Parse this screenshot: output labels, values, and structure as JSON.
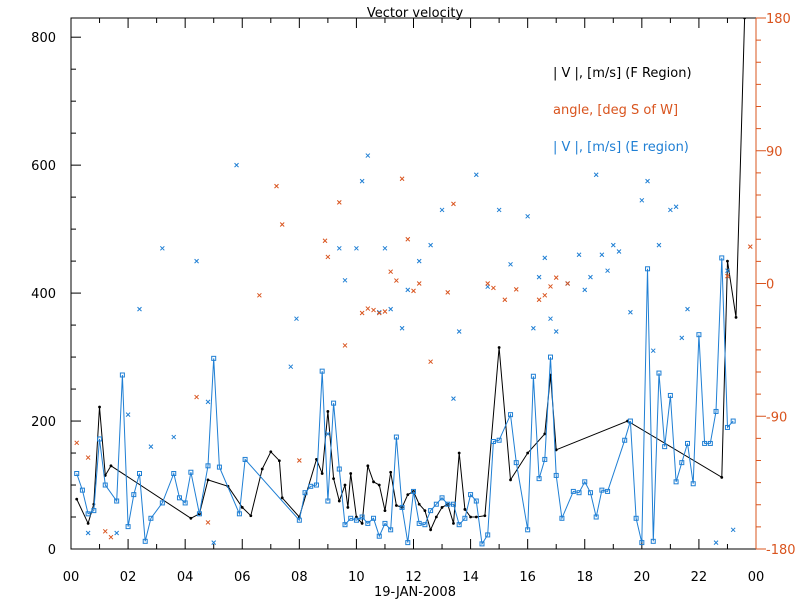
{
  "chart_data": {
    "type": "line",
    "title": "Vector velocity",
    "xlabel": "19-JAN-2008",
    "x_ticks": [
      "00",
      "02",
      "04",
      "06",
      "08",
      "10",
      "12",
      "14",
      "16",
      "18",
      "20",
      "22",
      "00"
    ],
    "xlim": [
      0,
      24
    ],
    "y_left": {
      "label": "",
      "lim": [
        0,
        830
      ],
      "ticks": [
        0,
        200,
        400,
        600,
        800
      ]
    },
    "y_right": {
      "label": "",
      "lim": [
        -180,
        180
      ],
      "ticks": [
        -180,
        -90,
        0,
        90,
        180
      ],
      "color": "#d9541e"
    },
    "legend": [
      {
        "text": "| V |, [m/s] (F Region)",
        "color": "#000000"
      },
      {
        "text": "angle, [deg S of W]",
        "color": "#d9541e"
      },
      {
        "text": "| V |, [m/s] (E region)",
        "color": "#1f7fd4"
      }
    ],
    "series": [
      {
        "name": "|V| F Region",
        "color": "#000000",
        "axis": "left",
        "marker": "dot",
        "points": [
          [
            0.2,
            78
          ],
          [
            0.6,
            40
          ],
          [
            0.8,
            70
          ],
          [
            1.0,
            222
          ],
          [
            1.2,
            115
          ],
          [
            1.4,
            130
          ],
          [
            4.2,
            48
          ],
          [
            4.5,
            55
          ],
          [
            4.8,
            108
          ],
          [
            5.5,
            98
          ],
          [
            6.0,
            65
          ],
          [
            6.3,
            52
          ],
          [
            6.7,
            125
          ],
          [
            7.0,
            152
          ],
          [
            7.3,
            138
          ],
          [
            7.4,
            80
          ],
          [
            8.0,
            50
          ],
          [
            8.6,
            140
          ],
          [
            8.8,
            118
          ],
          [
            9.0,
            215
          ],
          [
            9.2,
            110
          ],
          [
            9.4,
            75
          ],
          [
            9.6,
            100
          ],
          [
            9.7,
            65
          ],
          [
            9.8,
            118
          ],
          [
            10.0,
            50
          ],
          [
            10.2,
            40
          ],
          [
            10.4,
            130
          ],
          [
            10.6,
            105
          ],
          [
            10.8,
            100
          ],
          [
            11.0,
            60
          ],
          [
            11.2,
            120
          ],
          [
            11.4,
            68
          ],
          [
            11.6,
            65
          ],
          [
            11.8,
            85
          ],
          [
            12.0,
            90
          ],
          [
            12.2,
            70
          ],
          [
            12.4,
            60
          ],
          [
            12.6,
            30
          ],
          [
            12.8,
            50
          ],
          [
            13.0,
            65
          ],
          [
            13.2,
            70
          ],
          [
            13.4,
            40
          ],
          [
            13.6,
            150
          ],
          [
            13.8,
            62
          ],
          [
            14.0,
            50
          ],
          [
            14.2,
            50
          ],
          [
            14.5,
            52
          ],
          [
            15.0,
            315
          ],
          [
            15.4,
            108
          ],
          [
            16.0,
            150
          ],
          [
            16.6,
            180
          ],
          [
            16.8,
            272
          ],
          [
            17.0,
            155
          ],
          [
            19.5,
            200
          ],
          [
            22.8,
            112
          ],
          [
            23.0,
            450
          ],
          [
            23.3,
            362
          ],
          [
            23.6,
            830
          ]
        ]
      },
      {
        "name": "|V| E region",
        "color": "#1f7fd4",
        "axis": "left",
        "marker": "square",
        "points": [
          [
            0.2,
            118
          ],
          [
            0.4,
            92
          ],
          [
            0.6,
            55
          ],
          [
            0.8,
            60
          ],
          [
            1.0,
            172
          ],
          [
            1.2,
            100
          ],
          [
            1.6,
            75
          ],
          [
            1.8,
            272
          ],
          [
            2.0,
            35
          ],
          [
            2.2,
            85
          ],
          [
            2.4,
            118
          ],
          [
            2.6,
            12
          ],
          [
            2.8,
            48
          ],
          [
            3.2,
            72
          ],
          [
            3.6,
            118
          ],
          [
            3.8,
            80
          ],
          [
            4.0,
            72
          ],
          [
            4.2,
            120
          ],
          [
            4.5,
            55
          ],
          [
            4.8,
            130
          ],
          [
            5.0,
            298
          ],
          [
            5.2,
            128
          ],
          [
            5.9,
            55
          ],
          [
            6.1,
            140
          ],
          [
            8.0,
            45
          ],
          [
            8.2,
            88
          ],
          [
            8.4,
            98
          ],
          [
            8.6,
            100
          ],
          [
            8.8,
            278
          ],
          [
            9.0,
            75
          ],
          [
            9.2,
            228
          ],
          [
            9.4,
            125
          ],
          [
            9.6,
            38
          ],
          [
            9.8,
            48
          ],
          [
            10.0,
            45
          ],
          [
            10.2,
            50
          ],
          [
            10.4,
            40
          ],
          [
            10.6,
            48
          ],
          [
            10.8,
            20
          ],
          [
            11.0,
            40
          ],
          [
            11.2,
            30
          ],
          [
            11.4,
            175
          ],
          [
            11.6,
            65
          ],
          [
            11.8,
            10
          ],
          [
            12.0,
            90
          ],
          [
            12.2,
            40
          ],
          [
            12.4,
            38
          ],
          [
            12.6,
            60
          ],
          [
            12.8,
            70
          ],
          [
            13.0,
            80
          ],
          [
            13.2,
            70
          ],
          [
            13.4,
            70
          ],
          [
            13.6,
            38
          ],
          [
            13.8,
            48
          ],
          [
            14.0,
            85
          ],
          [
            14.2,
            75
          ],
          [
            14.4,
            8
          ],
          [
            14.6,
            22
          ],
          [
            14.8,
            168
          ],
          [
            15.0,
            170
          ],
          [
            15.4,
            210
          ],
          [
            15.6,
            135
          ],
          [
            16.0,
            30
          ],
          [
            16.2,
            270
          ],
          [
            16.4,
            110
          ],
          [
            16.6,
            140
          ],
          [
            16.8,
            300
          ],
          [
            17.0,
            115
          ],
          [
            17.2,
            48
          ],
          [
            17.6,
            90
          ],
          [
            17.8,
            88
          ],
          [
            18.0,
            105
          ],
          [
            18.2,
            88
          ],
          [
            18.4,
            50
          ],
          [
            18.6,
            92
          ],
          [
            18.8,
            90
          ],
          [
            19.4,
            170
          ],
          [
            19.6,
            200
          ],
          [
            19.8,
            48
          ],
          [
            20.0,
            10
          ],
          [
            20.2,
            438
          ],
          [
            20.4,
            12
          ],
          [
            20.6,
            275
          ],
          [
            20.8,
            160
          ],
          [
            21.0,
            240
          ],
          [
            21.2,
            105
          ],
          [
            21.4,
            135
          ],
          [
            21.6,
            165
          ],
          [
            21.8,
            102
          ],
          [
            22.0,
            335
          ],
          [
            22.2,
            165
          ],
          [
            22.4,
            165
          ],
          [
            22.6,
            215
          ],
          [
            22.8,
            455
          ],
          [
            23.0,
            190
          ],
          [
            23.2,
            200
          ]
        ]
      },
      {
        "name": "|V| E region (unconnected)",
        "color": "#1f7fd4",
        "axis": "left",
        "marker": "x",
        "points": [
          [
            0.6,
            25
          ],
          [
            1.6,
            25
          ],
          [
            2.0,
            210
          ],
          [
            2.4,
            375
          ],
          [
            2.8,
            160
          ],
          [
            3.2,
            470
          ],
          [
            3.6,
            175
          ],
          [
            4.4,
            450
          ],
          [
            4.8,
            230
          ],
          [
            5.0,
            10
          ],
          [
            5.8,
            600
          ],
          [
            7.9,
            360
          ],
          [
            7.7,
            285
          ],
          [
            9.0,
            180
          ],
          [
            9.4,
            470
          ],
          [
            9.6,
            420
          ],
          [
            10.0,
            470
          ],
          [
            10.2,
            575
          ],
          [
            10.4,
            615
          ],
          [
            10.8,
            370
          ],
          [
            11.0,
            470
          ],
          [
            11.2,
            375
          ],
          [
            11.6,
            345
          ],
          [
            11.8,
            405
          ],
          [
            12.2,
            450
          ],
          [
            12.6,
            475
          ],
          [
            13.0,
            530
          ],
          [
            13.4,
            235
          ],
          [
            13.6,
            340
          ],
          [
            14.2,
            585
          ],
          [
            14.6,
            410
          ],
          [
            15.0,
            530
          ],
          [
            15.4,
            445
          ],
          [
            16.0,
            520
          ],
          [
            16.2,
            345
          ],
          [
            16.4,
            425
          ],
          [
            16.6,
            455
          ],
          [
            16.8,
            360
          ],
          [
            17.0,
            340
          ],
          [
            17.4,
            415
          ],
          [
            17.8,
            460
          ],
          [
            18.0,
            405
          ],
          [
            18.2,
            425
          ],
          [
            18.4,
            585
          ],
          [
            18.6,
            460
          ],
          [
            18.8,
            435
          ],
          [
            19.0,
            475
          ],
          [
            19.2,
            465
          ],
          [
            19.6,
            370
          ],
          [
            20.0,
            545
          ],
          [
            20.2,
            575
          ],
          [
            20.4,
            310
          ],
          [
            20.6,
            475
          ],
          [
            21.0,
            530
          ],
          [
            21.2,
            535
          ],
          [
            21.4,
            330
          ],
          [
            21.6,
            375
          ],
          [
            22.6,
            10
          ],
          [
            23.0,
            435
          ],
          [
            23.2,
            30
          ]
        ]
      },
      {
        "name": "angle",
        "color": "#d9541e",
        "axis": "right",
        "marker": "x",
        "points": [
          [
            0.2,
            -108
          ],
          [
            0.6,
            -118
          ],
          [
            1.2,
            -168
          ],
          [
            1.4,
            -172
          ],
          [
            4.4,
            -77
          ],
          [
            4.8,
            -162
          ],
          [
            6.6,
            -8
          ],
          [
            7.2,
            66
          ],
          [
            7.4,
            40
          ],
          [
            8.0,
            -120
          ],
          [
            8.9,
            29
          ],
          [
            9.0,
            18
          ],
          [
            9.4,
            55
          ],
          [
            9.6,
            -42
          ],
          [
            10.2,
            -20
          ],
          [
            10.4,
            -17
          ],
          [
            10.6,
            -18
          ],
          [
            10.8,
            -20
          ],
          [
            11.0,
            -19
          ],
          [
            11.2,
            8
          ],
          [
            11.4,
            2
          ],
          [
            11.6,
            71
          ],
          [
            11.8,
            30
          ],
          [
            12.0,
            -5
          ],
          [
            12.2,
            0
          ],
          [
            12.6,
            -53
          ],
          [
            13.2,
            -6
          ],
          [
            13.4,
            54
          ],
          [
            14.6,
            0
          ],
          [
            14.8,
            -3
          ],
          [
            15.2,
            -11
          ],
          [
            15.6,
            -4
          ],
          [
            16.4,
            -11
          ],
          [
            16.6,
            -8
          ],
          [
            16.8,
            -2
          ],
          [
            17.0,
            4
          ],
          [
            17.4,
            0
          ],
          [
            23.0,
            5
          ],
          [
            23.8,
            25
          ]
        ]
      }
    ]
  }
}
